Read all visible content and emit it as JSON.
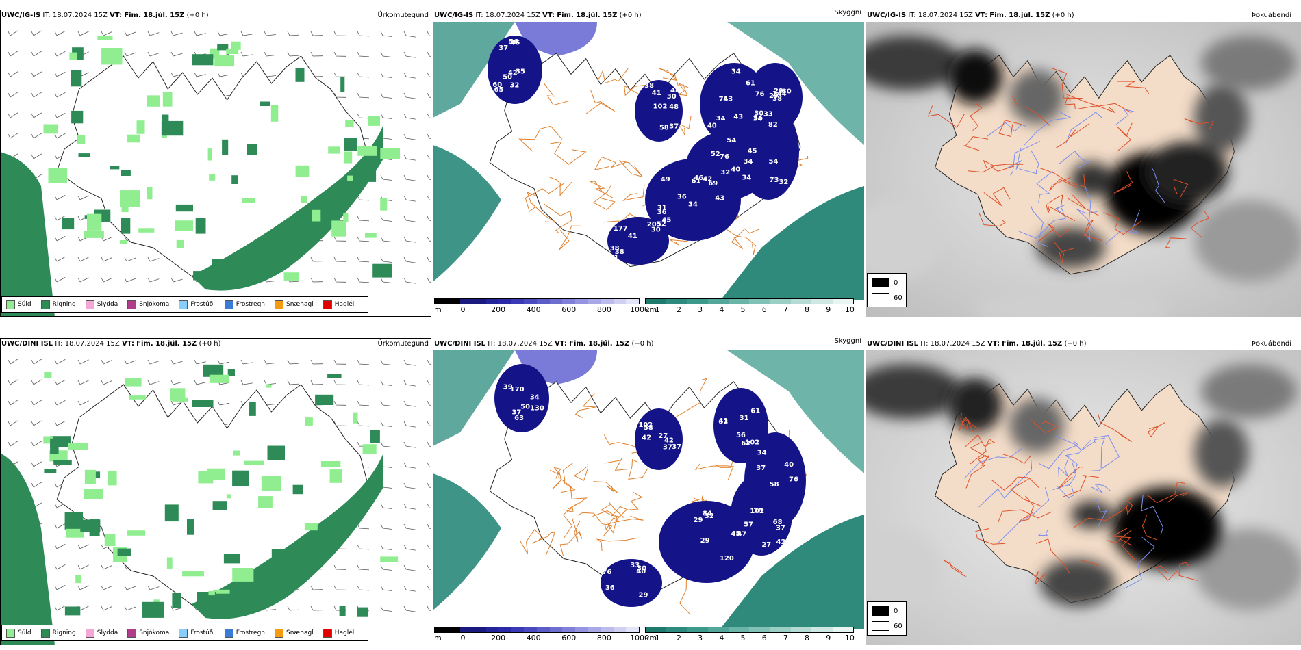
{
  "rows": [
    {
      "model": "UWC/IG-IS",
      "it_label": "IT:",
      "it_value": "18.07.2024 15Z",
      "vt_label": "VT:",
      "vt_value": "Fim. 18.júl. 15Z",
      "offset": "(+0 h)",
      "panels": {
        "ptype_title": "Úrkomutegund",
        "vis_title": "Skyggni",
        "cloud_title": "Þokuábendi"
      },
      "cloud_base_labels": [
        "37",
        "48",
        "43",
        "32",
        "36",
        "177",
        "144",
        "69",
        "50",
        "48",
        "61",
        "34",
        "49",
        "52",
        "33",
        "54",
        "65",
        "30",
        "34",
        "73",
        "31",
        "41",
        "30",
        "76",
        "42",
        "37",
        "34",
        "34",
        "36",
        "205",
        "38",
        "32",
        "32",
        "38",
        "43",
        "82",
        "34",
        "41",
        "29",
        "40",
        "60",
        "41",
        "76",
        "45",
        "43",
        "30",
        "29",
        "61",
        "35",
        "58",
        "71",
        "54",
        "42",
        "38",
        "30",
        "46",
        "46",
        "102",
        "40",
        "34",
        "45",
        "38",
        "56",
        "52",
        "56"
      ]
    },
    {
      "model": "UWC/DINI ISL",
      "it_label": "IT:",
      "it_value": "18.07.2024 15Z",
      "vt_label": "VT:",
      "vt_value": "Fim. 18.júl. 15Z",
      "offset": "(+0 h)",
      "panels": {
        "ptype_title": "Úrkomutegund",
        "vis_title": "Skyggni",
        "cloud_title": "Þokuábendi"
      },
      "cloud_base_labels": [
        "170",
        "37",
        "61",
        "38",
        "29",
        "36",
        "57",
        "50",
        "42",
        "34",
        "76",
        "84",
        "30",
        "27",
        "37",
        "42",
        "41",
        "102",
        "29",
        "40",
        "47",
        "39",
        "37",
        "62",
        "37",
        "32",
        "76",
        "42",
        "63",
        "27",
        "31",
        "40",
        "120",
        "33",
        "37",
        "34",
        "58",
        "62",
        "102",
        "45",
        "29",
        "68",
        "130",
        "102",
        "56",
        "58"
      ]
    }
  ],
  "ptype_legend": [
    {
      "label": "Súld",
      "color": "#90ee90"
    },
    {
      "label": "Rigning",
      "color": "#2e8b57"
    },
    {
      "label": "Slydda",
      "color": "#f4a6d7"
    },
    {
      "label": "Snjókoma",
      "color": "#b03d8c"
    },
    {
      "label": "Frostúði",
      "color": "#87cefa"
    },
    {
      "label": "Frostregn",
      "color": "#3a7bd5"
    },
    {
      "label": "Snæhagl",
      "color": "#f39c12"
    },
    {
      "label": "Haglél",
      "color": "#e00000"
    }
  ],
  "cloud_base_colorbar": {
    "unit": "m",
    "ticks": [
      "0",
      "200",
      "400",
      "600",
      "800",
      "1000"
    ],
    "colors": [
      "#000000",
      "#000000",
      "#1a1a7e",
      "#1a1a7e",
      "#23239a",
      "#2a2aa8",
      "#3a3ab6",
      "#4a4ac0",
      "#5c5cc8",
      "#6e6ed0",
      "#8080d8",
      "#9494e0",
      "#a8a8e6",
      "#bcbcec",
      "#d0d0f2",
      "#e4e4f8"
    ]
  },
  "visibility_colorbar": {
    "unit": "km",
    "ticks": [
      "1",
      "2",
      "3",
      "4",
      "5",
      "6",
      "7",
      "8",
      "9",
      "10"
    ],
    "colors": [
      "#1f7a6e",
      "#2c8a7e",
      "#3b9a8c",
      "#52a79a",
      "#6ab4a8",
      "#82c1b6",
      "#9bcec5",
      "#b5dbd4",
      "#cfe8e3",
      "#e9f5f2"
    ]
  },
  "fog_legend": [
    {
      "label": "0",
      "color": "#000000"
    },
    {
      "label": "60",
      "color": "#ffffff"
    }
  ]
}
